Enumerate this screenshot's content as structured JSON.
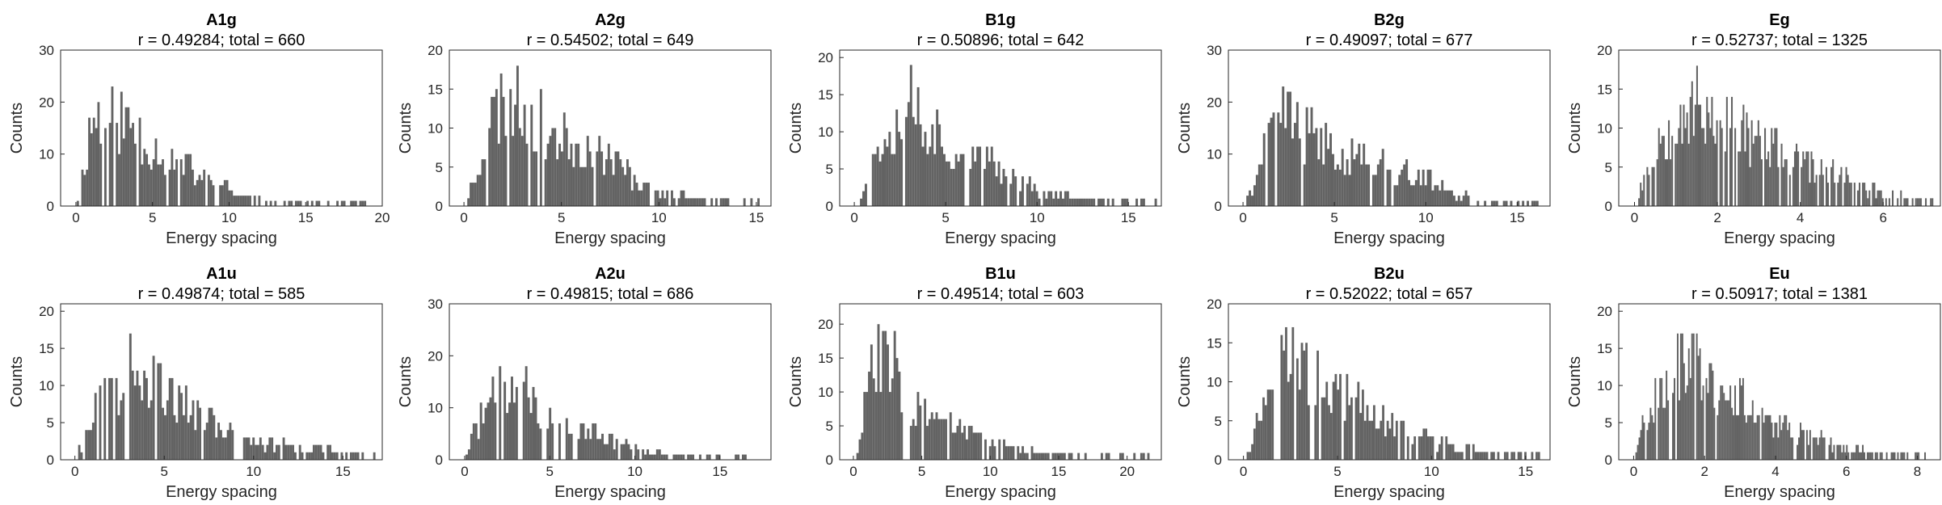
{
  "chart_data": [
    {
      "type": "bar",
      "title": "A1g",
      "subtitle": "r = 0.49284; total = 660",
      "xlabel": "Energy spacing",
      "ylabel": "Counts",
      "xlim": [
        -1,
        20
      ],
      "ylim": [
        0,
        30
      ],
      "xticks": [
        0,
        5,
        10,
        15,
        20
      ],
      "yticks": [
        0,
        10,
        20,
        30
      ],
      "bin_width": 0.15,
      "color": "#636363",
      "seed": 11,
      "peaks": [
        [
          0.9,
          20
        ],
        [
          1.5,
          23
        ],
        [
          2.3,
          24
        ],
        [
          3.0,
          21
        ],
        [
          3.8,
          19
        ],
        [
          4.6,
          15
        ],
        [
          5.5,
          13
        ],
        [
          6.5,
          11
        ],
        [
          7.5,
          9
        ],
        [
          8.5,
          6
        ],
        [
          9.5,
          5
        ],
        [
          10.5,
          3
        ],
        [
          11.5,
          2
        ],
        [
          12.5,
          1.5
        ],
        [
          13.5,
          1
        ]
      ],
      "x_end": 19
    },
    {
      "type": "bar",
      "title": "A2g",
      "subtitle": "r = 0.54502; total = 649",
      "xlabel": "Energy spacing",
      "ylabel": "Counts",
      "xlim": [
        -0.75,
        15.75
      ],
      "ylim": [
        0,
        20
      ],
      "xticks": [
        0,
        5,
        10,
        15
      ],
      "yticks": [
        0,
        5,
        10,
        15,
        20
      ],
      "bin_width": 0.12,
      "color": "#636363",
      "seed": 23,
      "peaks": [
        [
          0.6,
          6
        ],
        [
          1.2,
          13
        ],
        [
          1.8,
          17
        ],
        [
          2.4,
          18
        ],
        [
          3.0,
          16
        ],
        [
          3.6,
          15
        ],
        [
          4.2,
          13
        ],
        [
          5.0,
          11
        ],
        [
          5.8,
          10
        ],
        [
          6.6,
          9
        ],
        [
          7.5,
          8
        ],
        [
          8.5,
          5
        ],
        [
          9.5,
          3
        ],
        [
          10.5,
          2
        ],
        [
          11.5,
          1.5
        ],
        [
          12.5,
          1
        ],
        [
          13.5,
          1
        ],
        [
          14.5,
          1
        ],
        [
          15,
          1
        ]
      ],
      "x_end": 15.2
    },
    {
      "type": "bar",
      "title": "B1g",
      "subtitle": "r = 0.50896; total = 642",
      "xlabel": "Energy spacing",
      "ylabel": "Counts",
      "xlim": [
        -0.8,
        16.8
      ],
      "ylim": [
        0,
        21
      ],
      "xticks": [
        0,
        5,
        10,
        15
      ],
      "yticks": [
        0,
        5,
        10,
        15,
        20
      ],
      "bin_width": 0.13,
      "color": "#636363",
      "seed": 37,
      "peaks": [
        [
          0.5,
          3
        ],
        [
          1.0,
          10
        ],
        [
          1.7,
          14
        ],
        [
          2.4,
          15
        ],
        [
          3.0,
          20
        ],
        [
          3.6,
          15
        ],
        [
          4.2,
          14
        ],
        [
          5.0,
          10
        ],
        [
          6.0,
          8
        ],
        [
          7.0,
          8
        ],
        [
          8.0,
          6
        ],
        [
          9.0,
          5
        ],
        [
          10.0,
          3
        ],
        [
          11.0,
          2
        ],
        [
          12.0,
          1.5
        ],
        [
          13.5,
          1
        ],
        [
          15,
          1
        ],
        [
          16.3,
          1
        ]
      ],
      "x_end": 16.5
    },
    {
      "type": "bar",
      "title": "B2g",
      "subtitle": "r = 0.49097; total = 677",
      "xlabel": "Energy spacing",
      "ylabel": "Counts",
      "xlim": [
        -0.8,
        16.8
      ],
      "ylim": [
        0,
        30
      ],
      "xticks": [
        0,
        5,
        10,
        15
      ],
      "yticks": [
        0,
        10,
        20,
        30
      ],
      "bin_width": 0.13,
      "color": "#636363",
      "seed": 41,
      "peaks": [
        [
          0.5,
          5
        ],
        [
          1.0,
          12
        ],
        [
          1.6,
          18
        ],
        [
          2.3,
          24
        ],
        [
          3.0,
          19
        ],
        [
          3.8,
          17
        ],
        [
          4.6,
          15
        ],
        [
          5.5,
          13
        ],
        [
          6.5,
          12
        ],
        [
          7.5,
          10
        ],
        [
          8.5,
          9
        ],
        [
          9.5,
          7
        ],
        [
          10.5,
          6
        ],
        [
          11.5,
          3
        ],
        [
          12.5,
          2
        ],
        [
          13.5,
          1
        ],
        [
          16.1,
          1
        ]
      ],
      "x_end": 16.2
    },
    {
      "type": "bar",
      "title": "Eg",
      "subtitle": "r = 0.52737; total = 1325",
      "xlabel": "Energy spacing",
      "ylabel": "Counts",
      "xlim": [
        -0.38,
        7.38
      ],
      "ylim": [
        0,
        20
      ],
      "xticks": [
        0,
        2,
        4,
        6
      ],
      "yticks": [
        0,
        5,
        10,
        15,
        20
      ],
      "bin_width": 0.04,
      "color": "#636363",
      "seed": 53,
      "peaks": [
        [
          0.3,
          7
        ],
        [
          0.7,
          12
        ],
        [
          1.1,
          16
        ],
        [
          1.5,
          16
        ],
        [
          1.9,
          15
        ],
        [
          2.3,
          14
        ],
        [
          2.7,
          12
        ],
        [
          3.1,
          10
        ],
        [
          3.5,
          9
        ],
        [
          4.0,
          7
        ],
        [
          4.5,
          6
        ],
        [
          5.0,
          5
        ],
        [
          5.5,
          3
        ],
        [
          6.0,
          2
        ],
        [
          6.5,
          1.5
        ],
        [
          7.0,
          1.5
        ]
      ],
      "x_end": 7.2
    },
    {
      "type": "bar",
      "title": "A1u",
      "subtitle": "r = 0.49874; total = 585",
      "xlabel": "Energy spacing",
      "ylabel": "Counts",
      "xlim": [
        -0.8,
        17.2
      ],
      "ylim": [
        0,
        21
      ],
      "xticks": [
        0,
        5,
        10,
        15
      ],
      "yticks": [
        0,
        5,
        10,
        15,
        20
      ],
      "bin_width": 0.13,
      "color": "#636363",
      "seed": 67,
      "peaks": [
        [
          0.3,
          3
        ],
        [
          0.8,
          7
        ],
        [
          1.4,
          10
        ],
        [
          2.0,
          12
        ],
        [
          2.6,
          14
        ],
        [
          3.3,
          21
        ],
        [
          4.0,
          13
        ],
        [
          4.8,
          12
        ],
        [
          5.6,
          10
        ],
        [
          6.5,
          9
        ],
        [
          7.5,
          7
        ],
        [
          8.5,
          5
        ],
        [
          9.5,
          4
        ],
        [
          10.5,
          3
        ],
        [
          11.5,
          3
        ],
        [
          12.5,
          2
        ],
        [
          13.5,
          2
        ],
        [
          14.5,
          1.5
        ],
        [
          15.5,
          1
        ],
        [
          16.5,
          1
        ]
      ],
      "x_end": 16.8
    },
    {
      "type": "bar",
      "title": "A2u",
      "subtitle": "r = 0.49815; total = 686",
      "xlabel": "Energy spacing",
      "ylabel": "Counts",
      "xlim": [
        -0.9,
        18
      ],
      "ylim": [
        0,
        30
      ],
      "xticks": [
        0,
        5,
        10,
        15
      ],
      "yticks": [
        0,
        10,
        20,
        30
      ],
      "bin_width": 0.14,
      "color": "#636363",
      "seed": 71,
      "peaks": [
        [
          0.3,
          5
        ],
        [
          0.8,
          10
        ],
        [
          1.4,
          14
        ],
        [
          2.0,
          17
        ],
        [
          2.6,
          15
        ],
        [
          3.2,
          24
        ],
        [
          3.8,
          14
        ],
        [
          4.5,
          12
        ],
        [
          5.3,
          10
        ],
        [
          6.1,
          9
        ],
        [
          7.0,
          7
        ],
        [
          8.0,
          6
        ],
        [
          9.0,
          4
        ],
        [
          10.0,
          3
        ],
        [
          11.0,
          2
        ],
        [
          12.0,
          1.5
        ],
        [
          13.0,
          1
        ],
        [
          15.0,
          1
        ],
        [
          17.2,
          1
        ]
      ],
      "x_end": 17.3
    },
    {
      "type": "bar",
      "title": "B1u",
      "subtitle": "r = 0.49514; total = 603",
      "xlabel": "Energy spacing",
      "ylabel": "Counts",
      "xlim": [
        -1,
        22.5
      ],
      "ylim": [
        0,
        23
      ],
      "xticks": [
        0,
        5,
        10,
        15,
        20
      ],
      "yticks": [
        0,
        5,
        10,
        15,
        20
      ],
      "bin_width": 0.17,
      "color": "#636363",
      "seed": 83,
      "peaks": [
        [
          0.3,
          2
        ],
        [
          0.8,
          12
        ],
        [
          1.4,
          17
        ],
        [
          2.0,
          21
        ],
        [
          2.6,
          19
        ],
        [
          3.2,
          16
        ],
        [
          3.9,
          12
        ],
        [
          4.7,
          10
        ],
        [
          5.6,
          8
        ],
        [
          6.6,
          7
        ],
        [
          7.6,
          6
        ],
        [
          8.6,
          5
        ],
        [
          9.6,
          4
        ],
        [
          10.6,
          3
        ],
        [
          11.6,
          2
        ],
        [
          12.6,
          2
        ],
        [
          14.0,
          1
        ],
        [
          16.0,
          1
        ],
        [
          18.0,
          1
        ],
        [
          21.6,
          1
        ]
      ],
      "x_end": 21.7
    },
    {
      "type": "bar",
      "title": "B2u",
      "subtitle": "r = 0.52022; total = 657",
      "xlabel": "Energy spacing",
      "ylabel": "Counts",
      "xlim": [
        -0.8,
        16.3
      ],
      "ylim": [
        0,
        20
      ],
      "xticks": [
        0,
        5,
        10,
        15
      ],
      "yticks": [
        0,
        5,
        10,
        15,
        20
      ],
      "bin_width": 0.12,
      "color": "#636363",
      "seed": 97,
      "peaks": [
        [
          0.5,
          4
        ],
        [
          1.0,
          10
        ],
        [
          1.6,
          13
        ],
        [
          2.2,
          19
        ],
        [
          2.8,
          16
        ],
        [
          3.5,
          14
        ],
        [
          4.2,
          13
        ],
        [
          5.0,
          11
        ],
        [
          5.8,
          9
        ],
        [
          6.6,
          8
        ],
        [
          7.5,
          6
        ],
        [
          8.4,
          5
        ],
        [
          9.4,
          4
        ],
        [
          10.4,
          3
        ],
        [
          11.4,
          2
        ],
        [
          12.4,
          1.5
        ],
        [
          13.4,
          1
        ],
        [
          14.5,
          1
        ],
        [
          15.6,
          1
        ]
      ],
      "x_end": 15.7
    },
    {
      "type": "bar",
      "title": "Eu",
      "subtitle": "r = 0.50917; total = 1381",
      "xlabel": "Energy spacing",
      "ylabel": "Counts",
      "xlim": [
        -0.42,
        8.65
      ],
      "ylim": [
        0,
        21
      ],
      "xticks": [
        0,
        2,
        4,
        6,
        8
      ],
      "yticks": [
        0,
        5,
        10,
        15,
        20
      ],
      "bin_width": 0.045,
      "color": "#636363",
      "seed": 101,
      "peaks": [
        [
          0.3,
          7
        ],
        [
          0.7,
          12
        ],
        [
          1.1,
          15
        ],
        [
          1.5,
          17
        ],
        [
          1.9,
          15
        ],
        [
          2.3,
          13
        ],
        [
          2.7,
          11
        ],
        [
          3.1,
          10
        ],
        [
          3.5,
          8
        ],
        [
          4.0,
          7
        ],
        [
          4.5,
          5
        ],
        [
          5.0,
          4
        ],
        [
          5.5,
          3
        ],
        [
          6.0,
          2
        ],
        [
          6.5,
          1.5
        ],
        [
          7.0,
          1
        ],
        [
          7.5,
          1
        ],
        [
          8.0,
          1
        ]
      ],
      "x_end": 8.2
    }
  ]
}
